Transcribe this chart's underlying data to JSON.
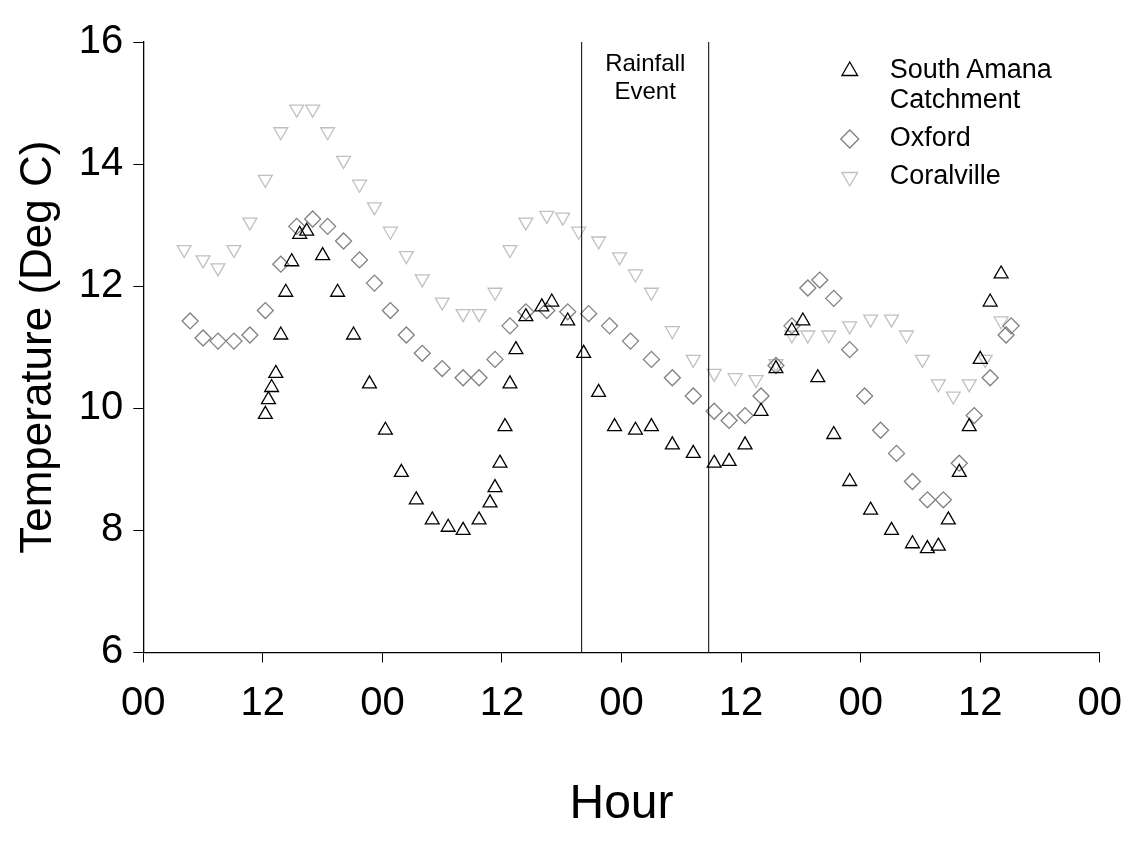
{
  "chart_data": {
    "type": "scatter",
    "xlabel": "Hour",
    "ylabel": "Temperature (Deg C)",
    "xlim": [
      0,
      96
    ],
    "xticks": [
      {
        "value": 0,
        "label": "00"
      },
      12,
      {
        "value": 24,
        "label": "00"
      },
      {
        "value": 36,
        "label": "12"
      },
      {
        "value": 48,
        "label": "00"
      },
      {
        "value": 60,
        "label": "12"
      },
      {
        "value": 72,
        "label": "00"
      },
      {
        "value": 84,
        "label": "12"
      },
      {
        "value": 96,
        "label": "00"
      }
    ],
    "ylim": [
      6,
      16
    ],
    "yticks": [
      6,
      8,
      10,
      12,
      14,
      16
    ],
    "grid": false,
    "legend": "top right",
    "ref_lines": [
      {
        "axis": "x",
        "value": 44
      },
      {
        "axis": "x",
        "value": 56.75
      }
    ],
    "annotations": [
      "Rainfall Event"
    ],
    "series": [
      {
        "name": "South Amana Catchment",
        "color": "#000000",
        "marker": "triangle",
        "x": [
          12.25,
          12.56,
          12.88,
          13.3,
          13.8,
          14.3,
          14.9,
          15.7,
          16.4,
          18.0,
          19.5,
          21.1,
          22.7,
          24.3,
          25.9,
          27.4,
          29.0,
          30.6,
          32.1,
          33.7,
          34.8,
          35.3,
          35.8,
          36.3,
          36.8,
          37.4,
          38.4,
          40.0,
          41.0,
          42.6,
          44.2,
          45.7,
          47.3,
          49.4,
          51.0,
          53.1,
          55.2,
          57.3,
          58.8,
          60.4,
          62.0,
          63.5,
          65.1,
          66.2,
          67.7,
          69.3,
          70.9,
          73.0,
          75.1,
          77.2,
          78.7,
          79.8,
          80.8,
          81.9,
          82.9,
          84.0,
          85.0,
          86.1
        ],
        "values": [
          9.9,
          10.14,
          10.34,
          10.57,
          11.2,
          11.9,
          12.4,
          12.85,
          12.9,
          12.5,
          11.9,
          11.2,
          10.4,
          9.64,
          8.95,
          8.5,
          8.17,
          8.05,
          8.0,
          8.17,
          8.45,
          8.7,
          9.1,
          9.7,
          10.4,
          10.96,
          11.5,
          11.66,
          11.74,
          11.43,
          10.9,
          10.26,
          9.7,
          9.64,
          9.7,
          9.4,
          9.26,
          9.1,
          9.13,
          9.4,
          9.95,
          10.65,
          11.27,
          11.43,
          10.5,
          9.57,
          8.8,
          8.33,
          8.0,
          7.78,
          7.7,
          7.74,
          8.17,
          8.95,
          9.7,
          10.8,
          11.74,
          12.2
        ]
      },
      {
        "name": "Oxford",
        "color": "#808080",
        "marker": "diamond",
        "x": [
          4.7,
          6.0,
          7.5,
          9.1,
          10.7,
          12.25,
          13.8,
          15.4,
          17.0,
          18.5,
          20.1,
          21.7,
          23.2,
          24.8,
          26.4,
          28.0,
          30.0,
          32.1,
          33.7,
          35.3,
          36.8,
          38.4,
          40.5,
          42.6,
          44.7,
          46.8,
          48.9,
          51.0,
          53.1,
          55.2,
          57.3,
          58.8,
          60.4,
          62.0,
          63.5,
          65.1,
          66.7,
          67.9,
          69.3,
          70.9,
          72.4,
          74.0,
          75.6,
          77.2,
          78.7,
          80.3,
          81.9,
          83.4,
          85.0,
          86.6,
          87.1
        ],
        "values": [
          11.43,
          11.15,
          11.1,
          11.1,
          11.2,
          11.6,
          12.36,
          12.98,
          13.1,
          12.98,
          12.74,
          12.43,
          12.05,
          11.6,
          11.2,
          10.9,
          10.65,
          10.5,
          10.5,
          10.8,
          11.35,
          11.58,
          11.6,
          11.58,
          11.55,
          11.35,
          11.1,
          10.8,
          10.5,
          10.2,
          9.95,
          9.8,
          9.88,
          10.2,
          10.7,
          11.35,
          11.97,
          12.1,
          11.8,
          10.96,
          10.2,
          9.64,
          9.26,
          8.8,
          8.5,
          8.5,
          9.1,
          9.88,
          10.5,
          11.2,
          11.35
        ]
      },
      {
        "name": "Coralville",
        "color": "#c0c0c0",
        "marker": "triangle-down",
        "x": [
          4.1,
          6.0,
          7.5,
          9.1,
          10.7,
          12.25,
          13.8,
          15.4,
          17.0,
          18.5,
          20.1,
          21.7,
          23.2,
          24.8,
          26.4,
          28.0,
          30.0,
          32.1,
          33.7,
          35.3,
          36.8,
          38.4,
          40.5,
          42.1,
          43.7,
          45.7,
          47.8,
          49.4,
          51.0,
          53.1,
          55.2,
          57.3,
          59.4,
          61.5,
          63.5,
          65.1,
          66.7,
          68.8,
          70.9,
          73.0,
          75.1,
          76.6,
          78.2,
          79.8,
          81.3,
          82.9,
          84.5,
          86.1
        ],
        "values": [
          12.6,
          12.43,
          12.3,
          12.6,
          13.05,
          13.75,
          14.53,
          14.9,
          14.9,
          14.53,
          14.06,
          13.67,
          13.3,
          12.9,
          12.5,
          12.12,
          11.74,
          11.55,
          11.55,
          11.9,
          12.6,
          13.05,
          13.16,
          13.13,
          12.9,
          12.74,
          12.48,
          12.2,
          11.9,
          11.27,
          10.8,
          10.57,
          10.5,
          10.47,
          10.73,
          11.2,
          11.2,
          11.2,
          11.35,
          11.46,
          11.46,
          11.2,
          10.8,
          10.4,
          10.2,
          10.4,
          10.8,
          11.43
        ]
      }
    ]
  }
}
